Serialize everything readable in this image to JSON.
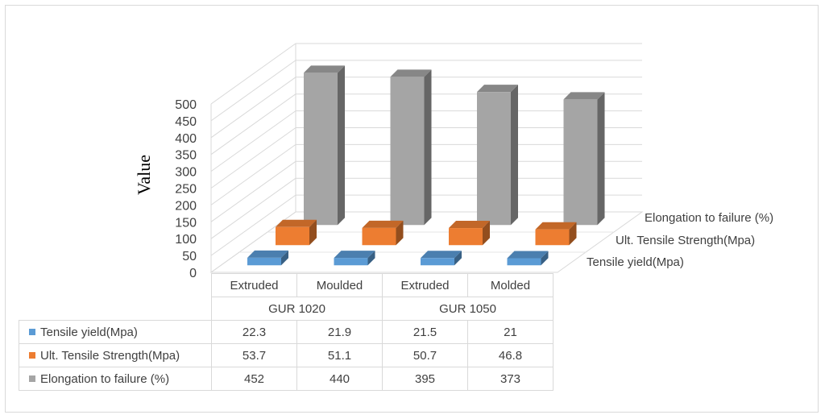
{
  "chart_data": {
    "type": "bar",
    "variant": "3d-clustered-column-with-data-table",
    "ylabel": "Value",
    "ylim": [
      0,
      500
    ],
    "yticks": [
      "0",
      "50",
      "100",
      "150",
      "200",
      "250",
      "300",
      "350",
      "400",
      "450",
      "500"
    ],
    "categories": [
      "Extruded",
      "Moulded",
      "Extruded",
      "Molded"
    ],
    "groups": [
      {
        "label": "GUR 1020"
      },
      {
        "label": "GUR 1050"
      }
    ],
    "series": [
      {
        "name": "Tensile yield(Mpa)",
        "color": "#5b9bd5",
        "values": [
          22.3,
          21.9,
          21.5,
          21
        ]
      },
      {
        "name": "Ult. Tensile Strength(Mpa)",
        "color": "#ed7d31",
        "values": [
          53.7,
          51.1,
          50.7,
          46.8
        ]
      },
      {
        "name": "Elongation to failure (%)",
        "color": "#a5a5a5",
        "values": [
          452,
          440,
          395,
          373
        ]
      }
    ],
    "grid": true,
    "legend": "in data table"
  }
}
